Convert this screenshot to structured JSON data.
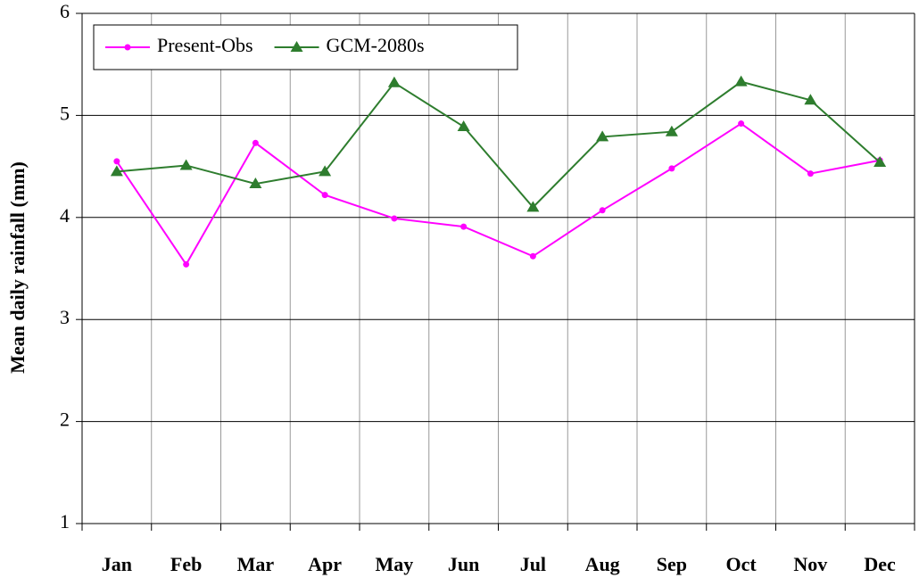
{
  "chart_data": {
    "type": "line",
    "y_label": "Mean daily rainfall (mm)",
    "categories": [
      "Jan",
      "Feb",
      "Mar",
      "Apr",
      "May",
      "Jun",
      "Jul",
      "Aug",
      "Sep",
      "Oct",
      "Nov",
      "Dec"
    ],
    "series": [
      {
        "name": "Present-Obs",
        "color": "#ff00ff",
        "marker": "circle",
        "values": [
          4.55,
          3.54,
          4.73,
          4.22,
          3.99,
          3.91,
          3.62,
          4.07,
          4.48,
          4.92,
          4.43,
          4.56
        ]
      },
      {
        "name": "GCM-2080s",
        "color": "#2e7d2e",
        "marker": "triangle",
        "values": [
          4.45,
          4.51,
          4.33,
          4.45,
          5.32,
          4.89,
          4.1,
          4.79,
          4.84,
          5.33,
          5.15,
          4.54
        ]
      }
    ],
    "ylim": [
      1,
      6
    ],
    "yticks": [
      1,
      2,
      3,
      4,
      5,
      6
    ],
    "grid": true,
    "legend": "upper left"
  }
}
